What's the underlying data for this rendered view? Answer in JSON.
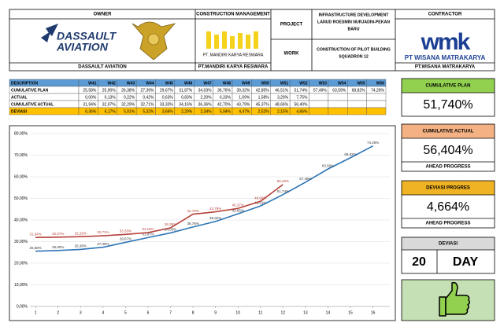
{
  "header": {
    "owner": {
      "title": "OWNER",
      "logo": [
        "DASSAULT",
        "AVIATION"
      ],
      "name": "DASSAULT AVIATION"
    },
    "cm": {
      "title": "CONSTRUCTION MANAGEMENT",
      "logo": "PT. MANDIRI KARYA RESWARA",
      "name": "PT.MANDIRI KARYA RESWARA"
    },
    "project": {
      "label": "PROJECT",
      "value": [
        "INFRASTRUCTURE DEVELOPMENT",
        "LANUD ROESMIN NURJADIN-PEKAN",
        "BARU"
      ]
    },
    "work": {
      "label": "WORK",
      "value": [
        "CONSTRUCTION OF PILOT BUILDING",
        "SQUADRON 12"
      ]
    },
    "contractor": {
      "title": "CONTRACTOR",
      "logo": "wmk",
      "logo_name": "PT WISANA MATRAKARYA",
      "name": "PT.WISANA MATRAKARYA"
    }
  },
  "table": {
    "header": [
      "DESCRIPTION",
      "W41",
      "W42",
      "W43",
      "W44",
      "W45",
      "W46",
      "W47",
      "W48",
      "W49",
      "W50",
      "W51",
      "W52",
      "W53",
      "W54",
      "W55",
      "W56"
    ],
    "rows": [
      [
        "CUMULATIVE PLAN",
        "25,58%",
        "25,90%",
        "26,38%",
        "27,39%",
        "29,67%",
        "31,87%",
        "34,03%",
        "36,76%",
        "39,32%",
        "42,85%",
        "46,51%",
        "51,74%",
        "57,49%",
        "63,59%",
        "68,82%",
        "74,26%"
      ],
      [
        "ACTUAL",
        "0,00%",
        "0,13%",
        "0,22%",
        "0,42%",
        "0,63%",
        "0,83%",
        "2,20%",
        "6,33%",
        "1,09%",
        "1,58%",
        "3,29%",
        "7,75%"
      ],
      [
        "CUMULATIVE ACTUAL",
        "31,94%",
        "32,07%",
        "32,29%",
        "32,71%",
        "33,33%",
        "34,16%",
        "36,36%",
        "42,70%",
        "43,79%",
        "45,37%",
        "48,66%",
        "56,40%"
      ],
      [
        "DEVIASI",
        "6,36%",
        "6,17%",
        "5,91%",
        "5,32%",
        "3,66%",
        "2,29%",
        "2,34%",
        "5,94%",
        "4,47%",
        "2,52%",
        "2,15%",
        "4,66%"
      ]
    ]
  },
  "summary": {
    "plan": {
      "title": "CUMULATIVE PLAN",
      "value": "51,740%"
    },
    "actual": {
      "title": "CUMULATIVE ACTUAL",
      "value": "56,404%",
      "note": "AHEAD PROGRESS"
    },
    "deviation": {
      "title": "DEVIASI PROGRES",
      "value": "4,664%",
      "note": "AHEAD PROGRESS"
    },
    "days": {
      "title": "DEVIASI",
      "value": "20",
      "unit": "DAY"
    }
  },
  "chart_data": {
    "type": "line",
    "x": [
      1,
      2,
      3,
      4,
      5,
      6,
      7,
      8,
      9,
      10,
      11,
      12,
      13,
      14,
      15,
      16
    ],
    "xlim": [
      0.75,
      16.75
    ],
    "xticks": [
      1,
      2,
      3,
      4,
      5,
      6,
      7,
      8,
      9,
      10,
      11,
      12,
      13,
      14,
      15,
      16
    ],
    "ylim": [
      0,
      80
    ],
    "yticks": [
      {
        "value": 0,
        "label": "0,00%"
      },
      {
        "value": 10,
        "label": "10,00%"
      },
      {
        "value": 20,
        "label": "20,00%"
      },
      {
        "value": 30,
        "label": "30,00%"
      },
      {
        "value": 40,
        "label": "40,00%"
      },
      {
        "value": 50,
        "label": "50,00%"
      },
      {
        "value": 60,
        "label": "60,00%"
      },
      {
        "value": 70,
        "label": "70,00%"
      },
      {
        "value": 80,
        "label": "80,00%"
      }
    ],
    "grid": true,
    "series": [
      {
        "name": "CUMULATIVE PLAN",
        "color": "#2e75b6",
        "values": [
          25.58,
          25.9,
          26.38,
          27.39,
          29.67,
          31.87,
          34.03,
          36.76,
          39.32,
          42.85,
          46.51,
          51.74,
          57.49,
          63.59,
          68.82,
          74.26
        ],
        "value_labels": [
          "25,58%",
          "25,90%",
          "26,38%",
          "27,39%",
          "29,67%",
          "31,87%",
          "34,03%",
          "36,76%",
          "39,32%",
          "42,85%",
          "46,51%",
          "51,74%",
          "57,49%",
          "63,59%",
          "68,82%",
          "74,26%"
        ]
      },
      {
        "name": "CUMULATIVE ACTUAL",
        "color": "#b5413a",
        "values": [
          31.94,
          32.07,
          32.29,
          32.71,
          33.33,
          34.16,
          36.36,
          42.7,
          43.79,
          45.37,
          48.66,
          56.4,
          null,
          null,
          null,
          null
        ],
        "value_labels": [
          "31,94%",
          "32,07%",
          "32,29%",
          "32,71%",
          "33,33%",
          "34,16%",
          "36,36%",
          "42,70%",
          "43,79%",
          "45,37%",
          "48,66%",
          "56,40%",
          null,
          null,
          null,
          null
        ]
      }
    ]
  }
}
